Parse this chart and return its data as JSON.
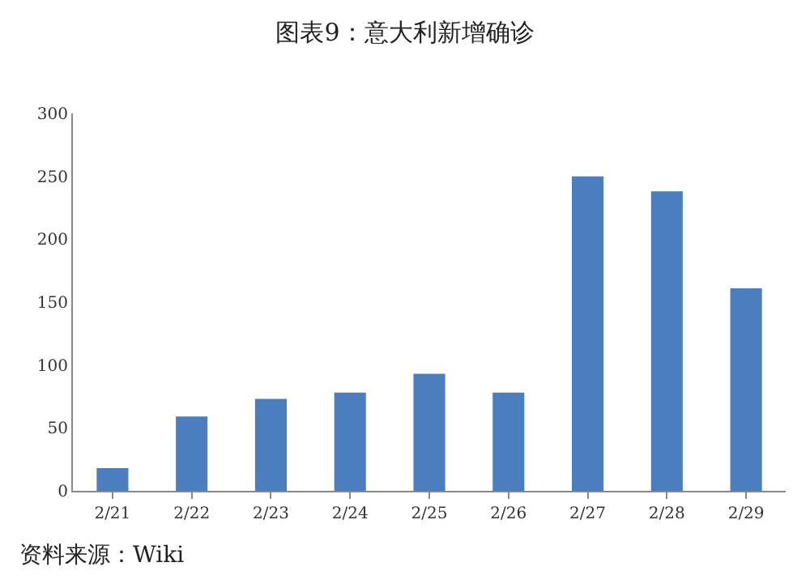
{
  "chart_data": {
    "type": "bar",
    "title": "图表9：意大利新增确诊",
    "categories": [
      "2/21",
      "2/22",
      "2/23",
      "2/24",
      "2/25",
      "2/26",
      "2/27",
      "2/28",
      "2/29"
    ],
    "values": [
      18,
      59,
      73,
      78,
      93,
      78,
      250,
      238,
      161
    ],
    "color": "#4a7ebf",
    "ylim": [
      0,
      300
    ],
    "yticks": [
      0,
      50,
      100,
      150,
      200,
      250,
      300
    ],
    "annotations": [
      "资料来源：Wiki"
    ]
  }
}
